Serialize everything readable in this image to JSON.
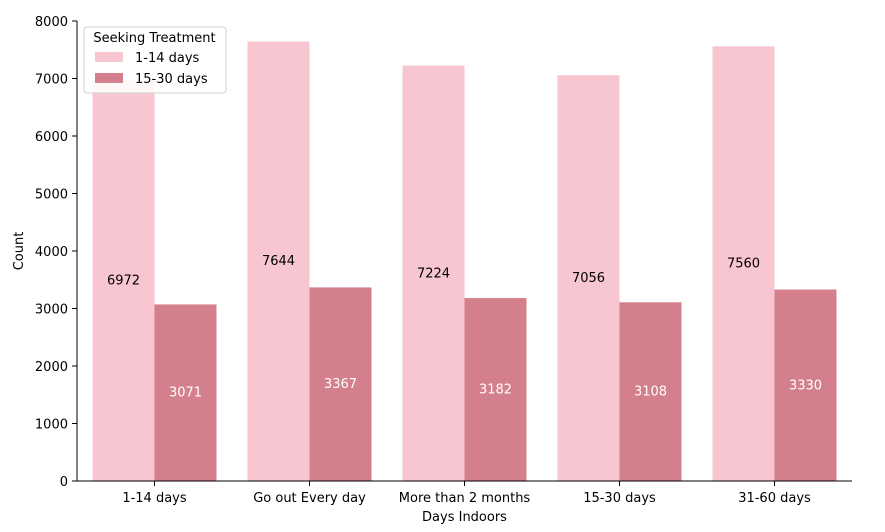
{
  "chart_data": {
    "type": "bar",
    "title": "",
    "xlabel": "Days Indoors",
    "ylabel": "Count",
    "categories": [
      "1-14 days",
      "Go out Every day",
      "More than 2 months",
      "15-30 days",
      "31-60 days"
    ],
    "series": [
      {
        "name": "1-14 days",
        "values": [
          6972,
          7644,
          7224,
          7056,
          7560
        ],
        "color": "#f7c6d0",
        "label_color": "#000000"
      },
      {
        "name": "15-30 days",
        "values": [
          3071,
          3367,
          3182,
          3108,
          3330
        ],
        "color": "#d4808c",
        "label_color": "#ffffff"
      }
    ],
    "ylim": [
      0,
      8000
    ],
    "yticks": [
      0,
      1000,
      2000,
      3000,
      4000,
      5000,
      6000,
      7000,
      8000
    ],
    "legend": {
      "title": "Seeking Treatment",
      "placement": "top-left"
    },
    "grid": false
  }
}
